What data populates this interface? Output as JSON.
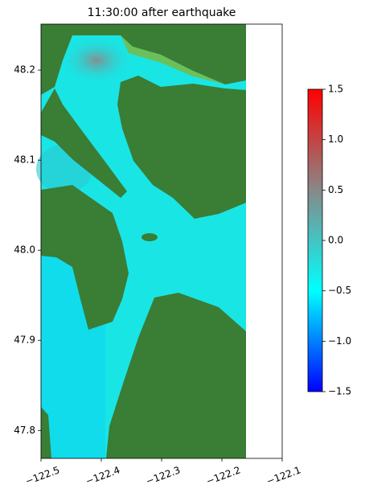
{
  "chart_data": {
    "type": "heatmap",
    "title": "11:30:00 after earthquake",
    "xlim": [
      -122.5,
      -122.1
    ],
    "xticks": [
      {
        "value": -122.5,
        "label": "−122.5"
      },
      {
        "value": -122.4,
        "label": "−122.4"
      },
      {
        "value": -122.3,
        "label": "−122.3"
      },
      {
        "value": -122.2,
        "label": "−122.2"
      },
      {
        "value": -122.1,
        "label": "−122.1"
      }
    ],
    "ylim": [
      47.769,
      48.251
    ],
    "yticks": [
      47.8,
      47.9,
      {
        "value": 48.0,
        "label": "48.0"
      },
      48.1,
      48.2
    ],
    "colorbar": {
      "lim": [
        -1.5,
        1.5
      ],
      "ticks": [
        {
          "value": -1.5,
          "label": "−1.5"
        },
        {
          "value": -1.0,
          "label": "−1.0"
        },
        {
          "value": -0.5,
          "label": "−0.5"
        },
        {
          "value": 0.0,
          "label": "0.0"
        },
        0.5,
        {
          "value": 1.0,
          "label": "1.0"
        },
        1.5
      ],
      "colors": [
        "#0000ff",
        "#00ffff",
        "#888888",
        "#ff0000"
      ]
    }
  }
}
